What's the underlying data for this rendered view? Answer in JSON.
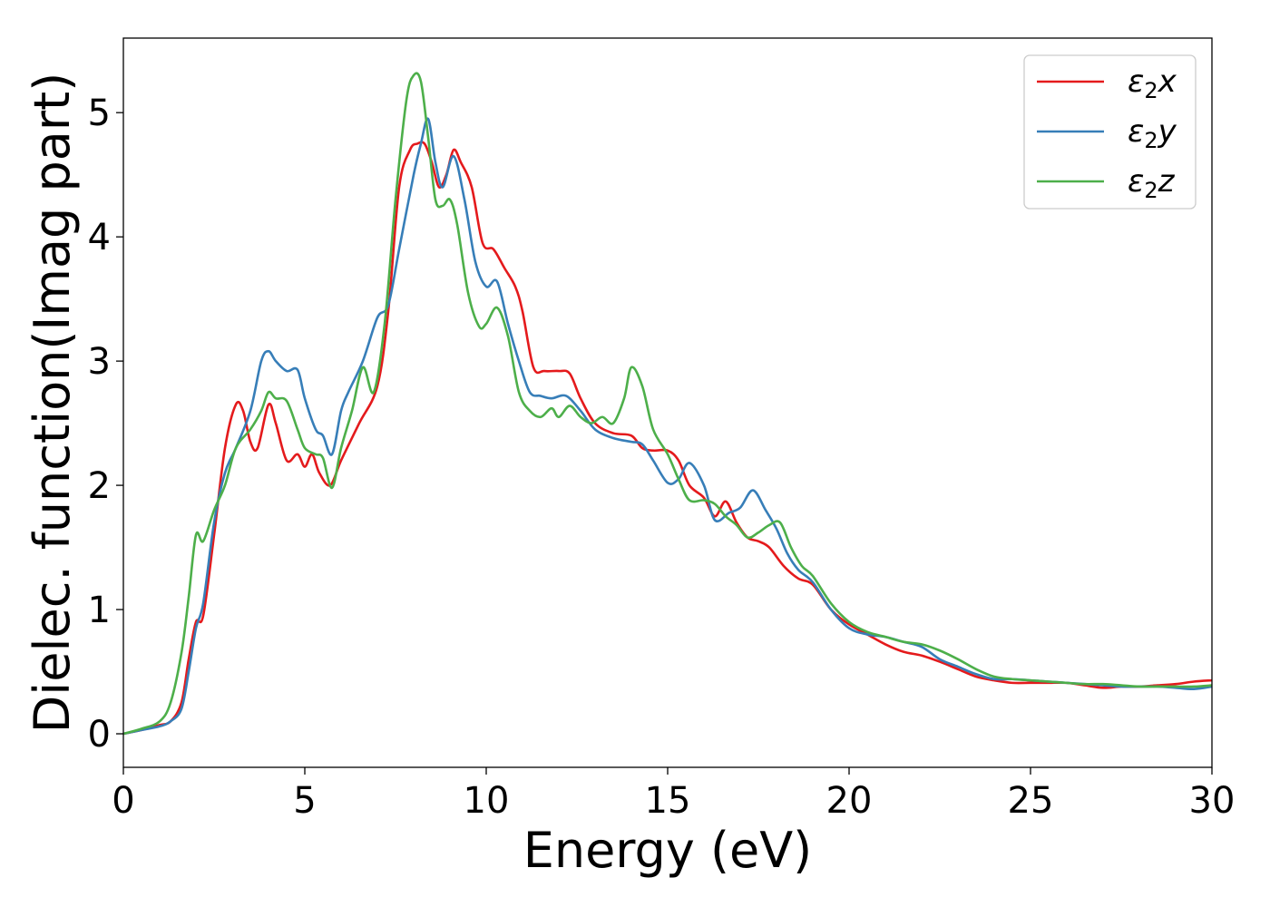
{
  "chart_data": {
    "type": "line",
    "xlabel": "Energy (eV)",
    "ylabel": "Dielec. function(Imag part)",
    "xlim": [
      0,
      30
    ],
    "ylim": [
      -0.27,
      5.6
    ],
    "xticks": [
      0,
      5,
      10,
      15,
      20,
      25,
      30
    ],
    "yticks": [
      0,
      1,
      2,
      3,
      4,
      5
    ],
    "grid": false,
    "legend_position": "top-right",
    "series": [
      {
        "name": "ε₂x",
        "legend_main": "ε",
        "legend_sub": "2",
        "legend_tail": "x",
        "color": "#e41a1c",
        "x": [
          0,
          0.5,
          1.0,
          1.3,
          1.6,
          1.8,
          2.0,
          2.2,
          2.5,
          2.8,
          3.1,
          3.3,
          3.5,
          3.7,
          4.0,
          4.2,
          4.5,
          4.8,
          5.0,
          5.2,
          5.4,
          5.7,
          6.0,
          6.5,
          7.0,
          7.3,
          7.6,
          7.9,
          8.1,
          8.3,
          8.5,
          8.7,
          8.9,
          9.1,
          9.3,
          9.6,
          9.9,
          10.2,
          10.5,
          10.8,
          11.0,
          11.3,
          11.6,
          12.0,
          12.3,
          12.6,
          13.0,
          13.5,
          14.0,
          14.3,
          14.6,
          15.0,
          15.3,
          15.6,
          16.0,
          16.3,
          16.6,
          16.9,
          17.2,
          17.5,
          17.8,
          18.2,
          18.6,
          19.0,
          19.5,
          20.0,
          20.5,
          21.0,
          21.5,
          22.0,
          22.5,
          23.0,
          23.5,
          24.0,
          24.5,
          25.0,
          25.5,
          26.0,
          26.5,
          27.0,
          27.5,
          28.0,
          28.5,
          29.0,
          29.5,
          30.0
        ],
        "y": [
          0,
          0.03,
          0.07,
          0.1,
          0.25,
          0.6,
          0.9,
          0.95,
          1.6,
          2.3,
          2.65,
          2.6,
          2.35,
          2.3,
          2.65,
          2.5,
          2.2,
          2.25,
          2.15,
          2.25,
          2.1,
          2.0,
          2.2,
          2.5,
          2.8,
          3.4,
          4.4,
          4.7,
          4.75,
          4.75,
          4.6,
          4.4,
          4.5,
          4.7,
          4.6,
          4.4,
          3.95,
          3.9,
          3.75,
          3.6,
          3.4,
          2.95,
          2.92,
          2.92,
          2.9,
          2.7,
          2.5,
          2.42,
          2.4,
          2.3,
          2.28,
          2.28,
          2.2,
          2.0,
          1.9,
          1.75,
          1.87,
          1.7,
          1.58,
          1.55,
          1.5,
          1.35,
          1.25,
          1.2,
          1.0,
          0.88,
          0.8,
          0.72,
          0.66,
          0.63,
          0.58,
          0.52,
          0.46,
          0.43,
          0.41,
          0.41,
          0.41,
          0.41,
          0.39,
          0.37,
          0.38,
          0.38,
          0.39,
          0.4,
          0.42,
          0.43
        ]
      },
      {
        "name": "ε₂y",
        "legend_main": "ε",
        "legend_sub": "2",
        "legend_tail": "y",
        "color": "#377eb8",
        "x": [
          0,
          0.5,
          1.0,
          1.3,
          1.6,
          1.8,
          2.0,
          2.2,
          2.5,
          2.8,
          3.1,
          3.5,
          3.8,
          4.0,
          4.2,
          4.5,
          4.8,
          5.0,
          5.3,
          5.5,
          5.75,
          6.0,
          6.2,
          6.6,
          7.0,
          7.3,
          7.6,
          8.0,
          8.2,
          8.4,
          8.6,
          8.8,
          9.1,
          9.4,
          9.7,
          10.0,
          10.3,
          10.6,
          10.9,
          11.2,
          11.5,
          11.8,
          12.2,
          12.6,
          13.0,
          13.5,
          14.0,
          14.3,
          14.6,
          15.0,
          15.3,
          15.6,
          16.0,
          16.3,
          16.7,
          17.0,
          17.35,
          17.7,
          18.0,
          18.3,
          18.6,
          19.0,
          19.5,
          20.0,
          20.5,
          21.0,
          21.5,
          22.0,
          22.5,
          23.0,
          23.5,
          24.0,
          24.5,
          25.0,
          25.5,
          26.0,
          26.5,
          27.0,
          27.5,
          28.0,
          28.5,
          29.0,
          29.5,
          30.0
        ],
        "y": [
          0,
          0.03,
          0.06,
          0.1,
          0.2,
          0.5,
          0.85,
          1.05,
          1.7,
          2.1,
          2.3,
          2.6,
          3.0,
          3.08,
          3.0,
          2.92,
          2.93,
          2.7,
          2.45,
          2.4,
          2.25,
          2.6,
          2.75,
          3.0,
          3.35,
          3.45,
          3.9,
          4.5,
          4.75,
          4.95,
          4.6,
          4.4,
          4.65,
          4.3,
          3.8,
          3.6,
          3.64,
          3.3,
          3.0,
          2.75,
          2.72,
          2.7,
          2.72,
          2.6,
          2.45,
          2.38,
          2.35,
          2.33,
          2.2,
          2.02,
          2.05,
          2.18,
          2.0,
          1.72,
          1.78,
          1.82,
          1.96,
          1.8,
          1.65,
          1.45,
          1.32,
          1.22,
          1.0,
          0.85,
          0.8,
          0.78,
          0.74,
          0.7,
          0.6,
          0.54,
          0.48,
          0.44,
          0.44,
          0.43,
          0.42,
          0.41,
          0.4,
          0.39,
          0.38,
          0.38,
          0.38,
          0.37,
          0.36,
          0.38
        ]
      },
      {
        "name": "ε₂z",
        "legend_main": "ε",
        "legend_sub": "2",
        "legend_tail": "z",
        "color": "#4daf4a",
        "x": [
          0,
          0.5,
          1.0,
          1.3,
          1.6,
          1.8,
          2.0,
          2.2,
          2.5,
          2.8,
          3.1,
          3.5,
          3.8,
          4.0,
          4.2,
          4.5,
          4.8,
          5.0,
          5.3,
          5.5,
          5.75,
          6.0,
          6.3,
          6.6,
          6.9,
          7.2,
          7.5,
          7.8,
          8.0,
          8.2,
          8.4,
          8.6,
          8.8,
          9.0,
          9.2,
          9.5,
          9.8,
          10.0,
          10.3,
          10.6,
          10.9,
          11.2,
          11.5,
          11.8,
          12.0,
          12.3,
          12.6,
          12.9,
          13.2,
          13.5,
          13.8,
          14.0,
          14.3,
          14.6,
          15.0,
          15.3,
          15.6,
          16.0,
          16.3,
          16.6,
          16.9,
          17.2,
          17.5,
          17.8,
          18.1,
          18.4,
          18.7,
          19.0,
          19.5,
          20.0,
          20.5,
          21.0,
          21.5,
          22.0,
          22.5,
          23.0,
          23.5,
          24.0,
          24.5,
          25.0,
          25.5,
          26.0,
          26.5,
          27.0,
          27.5,
          28.0,
          28.5,
          29.0,
          29.5,
          30.0
        ],
        "y": [
          0,
          0.04,
          0.1,
          0.25,
          0.65,
          1.1,
          1.6,
          1.55,
          1.8,
          2.0,
          2.3,
          2.45,
          2.6,
          2.75,
          2.7,
          2.68,
          2.45,
          2.3,
          2.25,
          2.22,
          1.98,
          2.3,
          2.6,
          2.95,
          2.75,
          3.3,
          4.3,
          5.1,
          5.3,
          5.25,
          4.8,
          4.3,
          4.25,
          4.3,
          4.1,
          3.55,
          3.28,
          3.3,
          3.43,
          3.2,
          2.75,
          2.6,
          2.55,
          2.62,
          2.55,
          2.64,
          2.55,
          2.5,
          2.55,
          2.5,
          2.7,
          2.95,
          2.8,
          2.45,
          2.25,
          2.05,
          1.88,
          1.88,
          1.85,
          1.75,
          1.68,
          1.58,
          1.62,
          1.68,
          1.7,
          1.5,
          1.35,
          1.27,
          1.05,
          0.9,
          0.82,
          0.78,
          0.74,
          0.72,
          0.67,
          0.6,
          0.52,
          0.46,
          0.44,
          0.43,
          0.42,
          0.41,
          0.4,
          0.4,
          0.39,
          0.38,
          0.38,
          0.38,
          0.38,
          0.39
        ]
      }
    ]
  }
}
